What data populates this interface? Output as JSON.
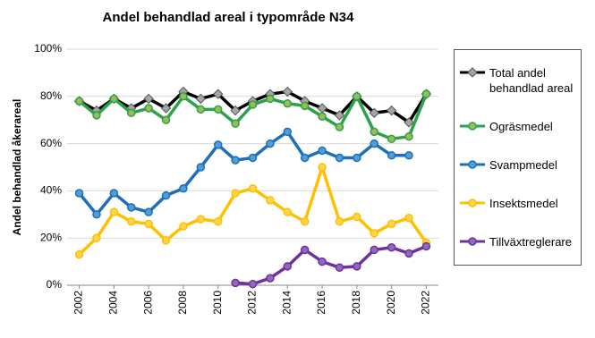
{
  "chart_data": {
    "type": "line",
    "title": "Andel behandlad areal i typområde N34",
    "y_label": "Andel behandlad åkerareal",
    "x": [
      2002,
      2003,
      2004,
      2005,
      2006,
      2007,
      2008,
      2009,
      2010,
      2011,
      2012,
      2013,
      2014,
      2015,
      2016,
      2017,
      2018,
      2019,
      2020,
      2021,
      2022
    ],
    "xlim": [
      2001.3,
      2022.7
    ],
    "xticks": [
      2002,
      2004,
      2006,
      2008,
      2010,
      2012,
      2014,
      2016,
      2018,
      2020,
      2022
    ],
    "ylim": [
      0,
      100
    ],
    "yticks": [
      {
        "value": 0,
        "label": "0%"
      },
      {
        "value": 20,
        "label": "20%"
      },
      {
        "value": 40,
        "label": "40%"
      },
      {
        "value": 60,
        "label": "60%"
      },
      {
        "value": 80,
        "label": "80%"
      },
      {
        "value": 100,
        "label": "100%"
      }
    ],
    "grid": true,
    "legend": "right",
    "series": [
      {
        "name": "Total andel behandlad areal",
        "color": "#000000",
        "marker_color": "#a6a6a6",
        "marker": "diamond",
        "values": [
          78,
          74,
          79,
          75,
          79,
          75,
          82,
          79,
          81,
          74,
          78,
          81,
          82,
          78,
          75,
          72,
          80,
          73,
          74,
          69,
          81
        ]
      },
      {
        "name": "Ogräsmedel",
        "color": "#2ca24a",
        "marker_color": "#9bbb59",
        "marker": "circle",
        "values": [
          78,
          72,
          79,
          73,
          75,
          70,
          80,
          74.5,
          74.5,
          68.5,
          76.5,
          79,
          77,
          76,
          71.5,
          67,
          80,
          65,
          62,
          63,
          81
        ]
      },
      {
        "name": "Svampmedel",
        "color": "#1f6fb8",
        "marker_color": "#4f9fd6",
        "marker": "circle",
        "values": [
          39,
          30,
          39,
          33,
          31,
          38,
          41,
          50,
          59.5,
          53,
          54,
          60,
          65,
          54,
          57,
          54,
          54,
          60,
          55,
          55,
          null
        ]
      },
      {
        "name": "Insektsmedel",
        "color": "#ffc000",
        "marker_color": "#ffd54f",
        "marker": "circle",
        "values": [
          13,
          20,
          31,
          27,
          26,
          19,
          25,
          28,
          27,
          39,
          41,
          36,
          31,
          27,
          50,
          27,
          29,
          22,
          26,
          28.5,
          18
        ]
      },
      {
        "name": "Tillväxtreglerare",
        "color": "#7030a0",
        "marker_color": "#8e6bb8",
        "marker": "circle",
        "values": [
          null,
          null,
          null,
          null,
          null,
          null,
          null,
          null,
          null,
          1,
          0.5,
          3,
          8,
          15,
          10,
          7.5,
          8,
          15,
          16,
          13.5,
          16.5
        ]
      }
    ]
  }
}
